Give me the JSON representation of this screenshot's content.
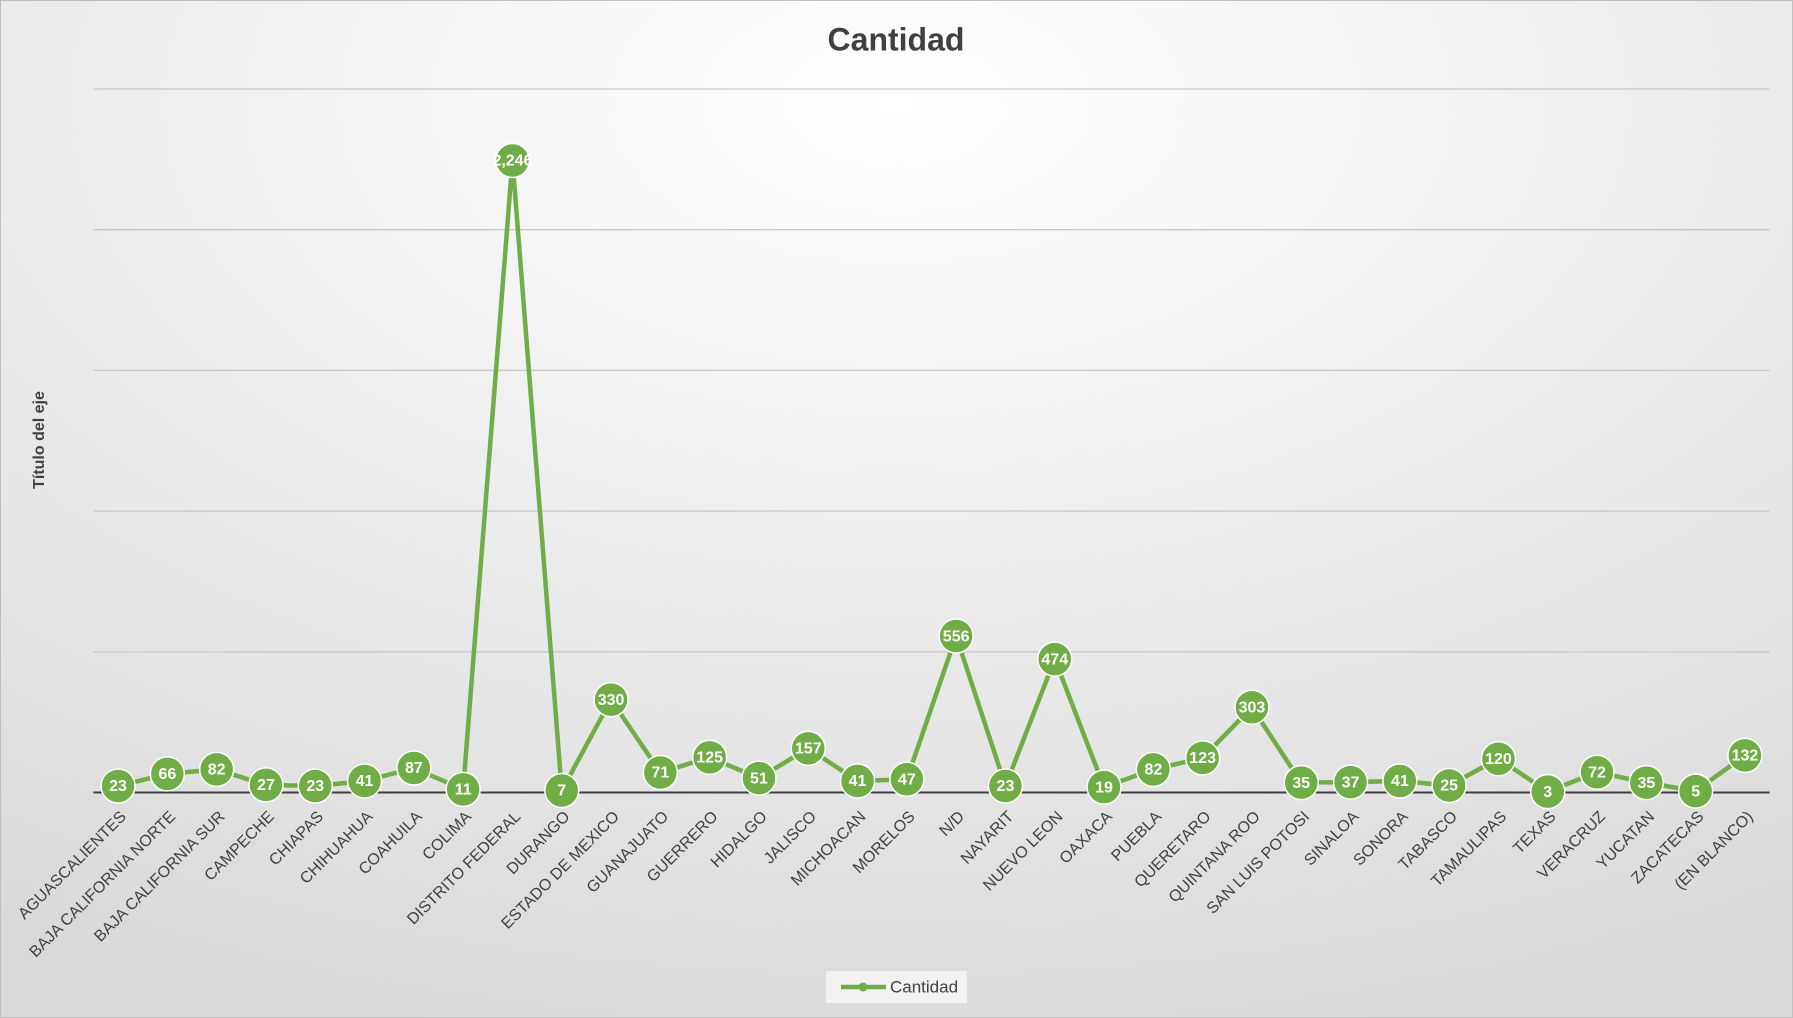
{
  "chart_data": {
    "type": "line",
    "title": "Cantidad",
    "y_label": "Título del eje",
    "categories": [
      "AGUASCALIENTES",
      "BAJA CALIFORNIA NORTE",
      "BAJA CALIFORNIA SUR",
      "CAMPECHE",
      "CHIAPAS",
      "CHIHUAHUA",
      "COAHUILA",
      "COLIMA",
      "DISTRITO FEDERAL",
      "DURANGO",
      "ESTADO DE MEXICO",
      "GUANAJUATO",
      "GUERRERO",
      "HIDALGO",
      "JALISCO",
      "MICHOACAN",
      "MORELOS",
      "N/D",
      "NAYARIT",
      "NUEVO LEON",
      "OAXACA",
      "PUEBLA",
      "QUERETARO",
      "QUINTANA ROO",
      "SAN LUIS POTOSI",
      "SINALOA",
      "SONORA",
      "TABASCO",
      "TAMAULIPAS",
      "TEXAS",
      "VERACRUZ",
      "YUCATAN",
      "ZACATECAS",
      "(EN BLANCO)"
    ],
    "series": [
      {
        "name": "Cantidad",
        "color": "#70ad47",
        "values": [
          23,
          66,
          82,
          27,
          23,
          41,
          87,
          11,
          2246,
          7,
          330,
          71,
          125,
          51,
          157,
          41,
          47,
          556,
          23,
          474,
          19,
          82,
          123,
          303,
          35,
          37,
          41,
          25,
          120,
          3,
          72,
          35,
          5,
          132
        ],
        "value_labels": [
          "23",
          "66",
          "82",
          "27",
          "23",
          "41",
          "87",
          "11",
          "2,246",
          "7",
          "330",
          "71",
          "125",
          "51",
          "157",
          "41",
          "47",
          "556",
          "23",
          "474",
          "19",
          "82",
          "123",
          "303",
          "35",
          "37",
          "41",
          "25",
          "120",
          "3",
          "72",
          "35",
          "5",
          "132"
        ]
      }
    ],
    "ylim": [
      0,
      2500
    ],
    "yticks": [
      0,
      500,
      1000,
      1500,
      2000,
      2500
    ],
    "grid": true,
    "legend": "bottom"
  }
}
